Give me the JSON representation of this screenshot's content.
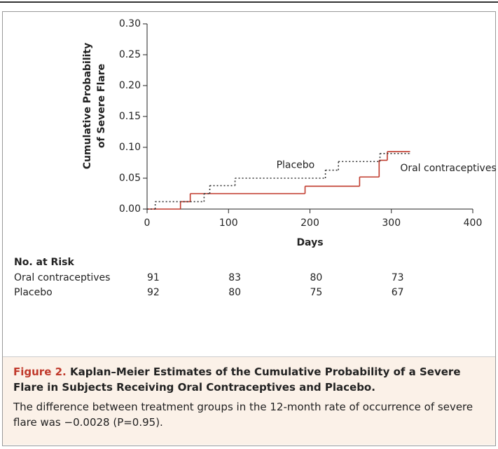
{
  "chart_data": {
    "type": "step",
    "ylabel": [
      "Cumulative Probability",
      "of Severe Flare"
    ],
    "xlabel": "Days",
    "xlim": [
      0,
      400
    ],
    "xticks": [
      0,
      100,
      200,
      300,
      400
    ],
    "ylim": [
      0,
      0.3
    ],
    "yticks": [
      {
        "value": 0,
        "label": "0.00"
      },
      {
        "value": 0.05,
        "label": "0.05"
      },
      {
        "value": 0.1,
        "label": "0.10"
      },
      {
        "value": 0.15,
        "label": "0.15"
      },
      {
        "value": 0.2,
        "label": "0.20"
      },
      {
        "value": 0.25,
        "label": "0.25"
      },
      {
        "value": 0.3,
        "label": "0.30"
      }
    ],
    "series": [
      {
        "name": "Oral contraceptives",
        "color": "#c0392b",
        "dash": "solid",
        "x": [
          0,
          41,
          53,
          194,
          261,
          285,
          295,
          323
        ],
        "values": [
          0,
          0.012,
          0.025,
          0.037,
          0.052,
          0.079,
          0.093,
          0.093
        ]
      },
      {
        "name": "Placebo",
        "color": "#333333",
        "dash": "dotted",
        "x": [
          0,
          10,
          70,
          77,
          108,
          219,
          235,
          286,
          323
        ],
        "values": [
          0,
          0.012,
          0.025,
          0.038,
          0.05,
          0.063,
          0.077,
          0.09,
          0.09
        ]
      }
    ],
    "at_risk": {
      "title": "No. at Risk",
      "rows": [
        {
          "name": "Oral contraceptives",
          "values": [
            91,
            83,
            80,
            73
          ]
        },
        {
          "name": "Placebo",
          "values": [
            92,
            80,
            75,
            67
          ]
        }
      ]
    },
    "caption_label": "Figure 2.",
    "caption_title": "Kaplan–Meier Estimates of the Cumulative Probability of a Severe Flare in Subjects Receiving Oral Contraceptives and Placebo.",
    "caption_text": "The difference between treatment groups in the 12-month rate of occurrence of severe flare was −0.0028 (P=0.95)."
  }
}
